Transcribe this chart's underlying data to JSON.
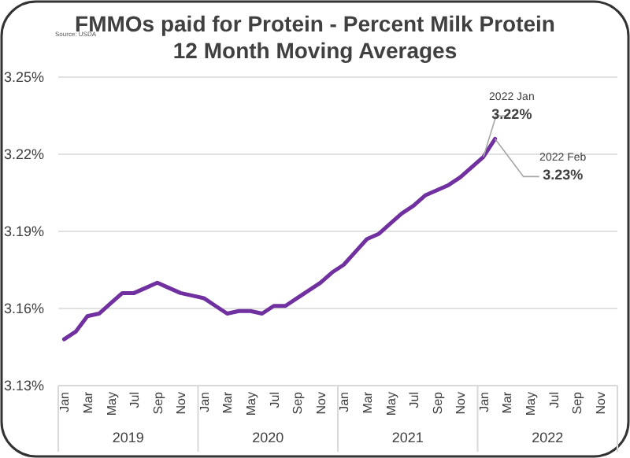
{
  "chart_data": {
    "type": "line",
    "title": "FMMOs paid for Protein - Percent Milk Protein",
    "subtitle": "12 Month Moving Averages",
    "categories": [
      "Jan",
      null,
      "Mar",
      null,
      "May",
      null,
      "Jul",
      null,
      "Sep",
      null,
      "Nov",
      null,
      "Jan",
      null,
      "Mar",
      null,
      "May",
      null,
      "Jul",
      null,
      "Sep",
      null,
      "Nov",
      null,
      "Jan",
      null,
      "Mar",
      null,
      "May",
      null,
      "Jul",
      null,
      "Sep",
      null,
      "Nov",
      null,
      "Jan",
      null,
      "Mar",
      null,
      "May",
      null,
      "Jul",
      null,
      "Sep",
      null,
      "Nov",
      null
    ],
    "series": [
      {
        "color": "#7030a0",
        "values": [
          3.148,
          3.151,
          3.157,
          3.158,
          3.162,
          3.166,
          3.166,
          3.168,
          3.17,
          3.168,
          3.166,
          3.165,
          3.164,
          3.161,
          3.158,
          3.159,
          3.159,
          3.158,
          3.161,
          3.161,
          3.164,
          3.167,
          3.17,
          3.174,
          3.177,
          3.182,
          3.187,
          3.189,
          3.193,
          3.197,
          3.2,
          3.204,
          3.206,
          3.208,
          3.211,
          3.215,
          3.219,
          3.226,
          null,
          null,
          null,
          null,
          null,
          null,
          null,
          null,
          null,
          null
        ]
      }
    ],
    "ylim": [
      3.13,
      3.25
    ],
    "yticks": [
      {
        "value": 3.13,
        "label": "3.13%"
      },
      {
        "value": 3.16,
        "label": "3.16%"
      },
      {
        "value": 3.19,
        "label": "3.19%"
      },
      {
        "value": 3.22,
        "label": "3.22%"
      },
      {
        "value": 3.25,
        "label": "3.25%"
      }
    ],
    "grid": "y",
    "annotations": [
      "Source: USDA",
      "2019",
      "2020",
      "2021",
      "2022",
      "2022 Jan\n3.22%",
      "2022 Feb\n3.23%"
    ]
  }
}
